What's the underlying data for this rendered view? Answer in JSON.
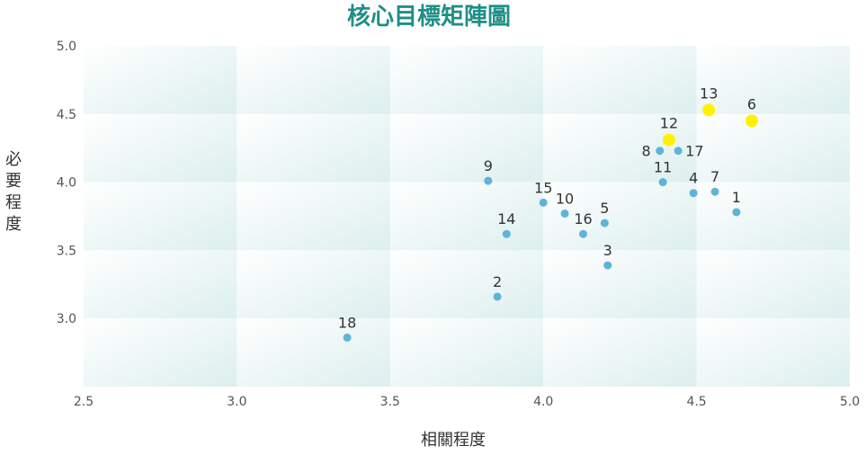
{
  "chart_data": {
    "type": "scatter",
    "title": "核心目標矩陣圖",
    "xlabel": "相關程度",
    "ylabel": "必要程度",
    "xlim": [
      2.5,
      5.0
    ],
    "ylim": [
      2.5,
      5.0
    ],
    "x_ticks": [
      "2.5",
      "3.0",
      "3.5",
      "4.0",
      "4.5",
      "5.0"
    ],
    "y_ticks": [
      "5.0",
      "4.5",
      "4.0",
      "3.5",
      "3.0"
    ],
    "normal_color": "#5fb3d9",
    "highlight_color": "#fff200",
    "points": [
      {
        "label": "1",
        "x": 4.63,
        "y": 3.78,
        "highlight": false
      },
      {
        "label": "2",
        "x": 3.85,
        "y": 3.16,
        "highlight": false
      },
      {
        "label": "3",
        "x": 4.21,
        "y": 3.39,
        "highlight": false
      },
      {
        "label": "4",
        "x": 4.49,
        "y": 3.92,
        "highlight": false
      },
      {
        "label": "5",
        "x": 4.2,
        "y": 3.7,
        "highlight": false
      },
      {
        "label": "6",
        "x": 4.68,
        "y": 4.45,
        "highlight": true
      },
      {
        "label": "7",
        "x": 4.56,
        "y": 3.93,
        "highlight": false
      },
      {
        "label": "8",
        "x": 4.38,
        "y": 4.23,
        "highlight": false
      },
      {
        "label": "9",
        "x": 3.82,
        "y": 4.01,
        "highlight": false
      },
      {
        "label": "10",
        "x": 4.07,
        "y": 3.77,
        "highlight": false
      },
      {
        "label": "11",
        "x": 4.39,
        "y": 4.0,
        "highlight": false
      },
      {
        "label": "12",
        "x": 4.41,
        "y": 4.31,
        "highlight": true
      },
      {
        "label": "13",
        "x": 4.54,
        "y": 4.53,
        "highlight": true
      },
      {
        "label": "14",
        "x": 3.88,
        "y": 3.62,
        "highlight": false
      },
      {
        "label": "15",
        "x": 4.0,
        "y": 3.85,
        "highlight": false
      },
      {
        "label": "16",
        "x": 4.13,
        "y": 3.62,
        "highlight": false
      },
      {
        "label": "17",
        "x": 4.44,
        "y": 4.23,
        "highlight": false
      },
      {
        "label": "18",
        "x": 3.36,
        "y": 2.86,
        "highlight": false
      }
    ]
  }
}
